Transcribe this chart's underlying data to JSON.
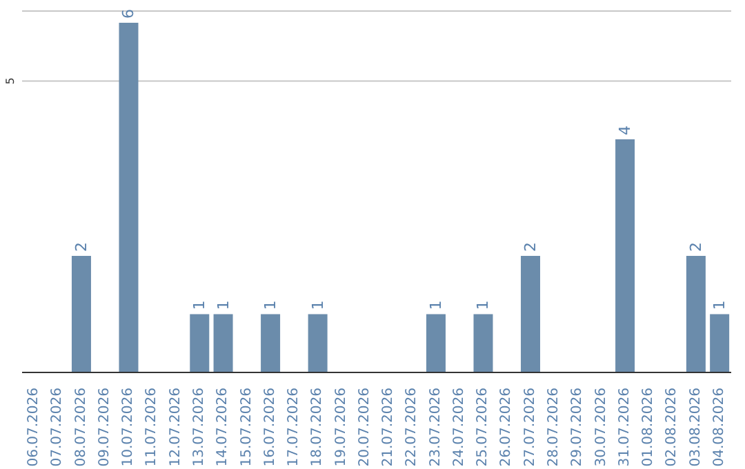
{
  "chart_data": {
    "type": "bar",
    "categories": [
      "06.07.2026",
      "07.07.2026",
      "08.07.2026",
      "09.07.2026",
      "10.07.2026",
      "11.07.2026",
      "12.07.2026",
      "13.07.2026",
      "14.07.2026",
      "15.07.2026",
      "16.07.2026",
      "17.07.2026",
      "18.07.2026",
      "19.07.2026",
      "20.07.2026",
      "21.07.2026",
      "22.07.2026",
      "23.07.2026",
      "24.07.2026",
      "25.07.2026",
      "26.07.2026",
      "27.07.2026",
      "28.07.2026",
      "29.07.2026",
      "30.07.2026",
      "31.07.2026",
      "01.08.2026",
      "02.08.2026",
      "03.08.2026",
      "04.08.2026"
    ],
    "values": [
      0,
      0,
      2,
      0,
      6,
      0,
      0,
      1,
      1,
      0,
      1,
      0,
      1,
      0,
      0,
      0,
      0,
      1,
      0,
      1,
      0,
      2,
      0,
      0,
      0,
      4,
      0,
      0,
      2,
      1
    ],
    "value_labels": [
      null,
      null,
      "2",
      null,
      "6",
      null,
      null,
      "1",
      "1",
      null,
      "1",
      null,
      "1",
      null,
      null,
      null,
      null,
      "1",
      null,
      "1",
      null,
      "2",
      null,
      null,
      null,
      "4",
      null,
      null,
      "2",
      "1"
    ],
    "color": "#6b8cab",
    "ylim": [
      0,
      6.2
    ],
    "yticks": [
      5
    ],
    "grid": "y"
  }
}
